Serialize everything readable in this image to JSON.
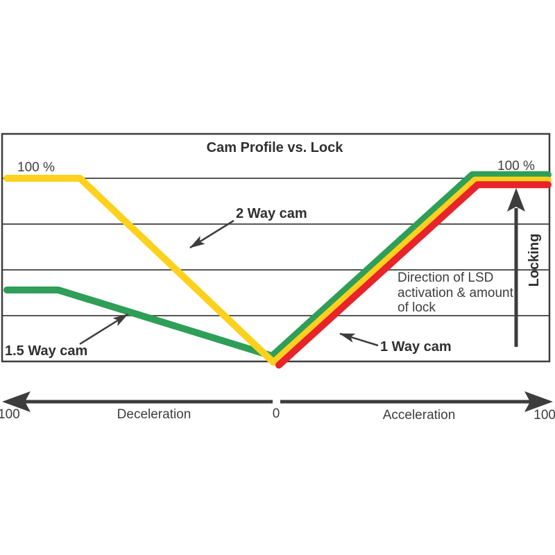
{
  "title": "Cam Profile vs. Lock",
  "labels": {
    "left_100": "100 %",
    "right_100": "100 %",
    "locking": "Locking",
    "direction_lines": [
      "Direction of LSD",
      "activation & amount",
      "of lock"
    ]
  },
  "axis": {
    "left_end": "100",
    "deceleration": "Deceleration",
    "center_zero": "0",
    "acceleration": "Acceleration",
    "right_end": "100"
  },
  "colors": {
    "green": "#2f9e58",
    "yellow": "#fdd11e",
    "red": "#e8232a",
    "dark": "#3d3d3d"
  },
  "chart_data": {
    "type": "line",
    "title": "Cam Profile vs. Lock",
    "x_axis": {
      "label_negative": "Deceleration",
      "label_positive": "Acceleration",
      "range": [
        -100,
        100
      ],
      "tick_labels": [
        "100",
        "0",
        "100"
      ]
    },
    "y_axis": {
      "label": "Locking",
      "unit": "% lock",
      "range": [
        0,
        100
      ],
      "top_left_label": "100 %",
      "top_right_label": "100 %"
    },
    "grid": true,
    "gridlines_pct": [
      25,
      50,
      75,
      100
    ],
    "series": [
      {
        "name": "1.5 Way cam",
        "color": "#2f9e58",
        "points": [
          [
            -100,
            39
          ],
          [
            -81,
            39
          ],
          [
            -2,
            3
          ],
          [
            72,
            102
          ],
          [
            100,
            102
          ]
        ]
      },
      {
        "name": "2 Way cam",
        "color": "#fdd11e",
        "points": [
          [
            -100,
            100
          ],
          [
            -73,
            100
          ],
          [
            -1.5,
            -0.5
          ],
          [
            73,
            99
          ],
          [
            100,
            99
          ]
        ]
      },
      {
        "name": "1 Way cam",
        "color": "#e8232a",
        "points": [
          [
            0.5,
            -2
          ],
          [
            74,
            96.5
          ],
          [
            100,
            96.5
          ]
        ]
      }
    ],
    "annotation": "Direction of LSD activation & amount of lock"
  }
}
